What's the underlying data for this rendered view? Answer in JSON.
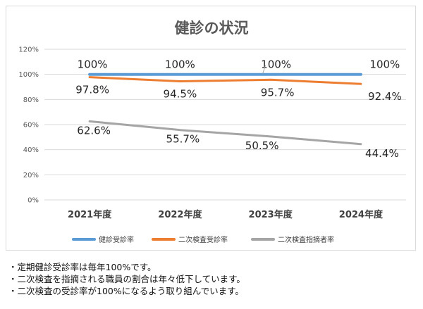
{
  "chart_data": {
    "type": "line",
    "title": "健診の状況",
    "categories": [
      "2021年度",
      "2022年度",
      "2023年度",
      "2024年度"
    ],
    "ylim": [
      0,
      120
    ],
    "yticks": [
      "0%",
      "20%",
      "40%",
      "60%",
      "80%",
      "100%",
      "120%"
    ],
    "grid": true,
    "legend_position": "bottom",
    "series": [
      {
        "name": "健診受診率",
        "color": "#5b9bd5",
        "values": [
          100,
          100,
          100,
          100
        ],
        "labels": [
          "100%",
          "100%",
          "100%",
          "100%"
        ]
      },
      {
        "name": "二次検査受診率",
        "color": "#ed7d31",
        "values": [
          97.8,
          94.5,
          95.7,
          92.4
        ],
        "labels": [
          "97.8%",
          "94.5%",
          "95.7%",
          "92.4%"
        ]
      },
      {
        "name": "二次検査指摘者率",
        "color": "#a5a5a5",
        "values": [
          62.6,
          55.7,
          50.5,
          44.4
        ],
        "labels": [
          "62.6%",
          "55.7%",
          "50.5%",
          "44.4%"
        ]
      }
    ]
  },
  "notes": [
    "・定期健診受診率は毎年100%です。",
    "・二次検査を指摘される職員の割合は年々低下しています。",
    "・二次検査の受診率が100%になるよう取り組んでいます。"
  ]
}
